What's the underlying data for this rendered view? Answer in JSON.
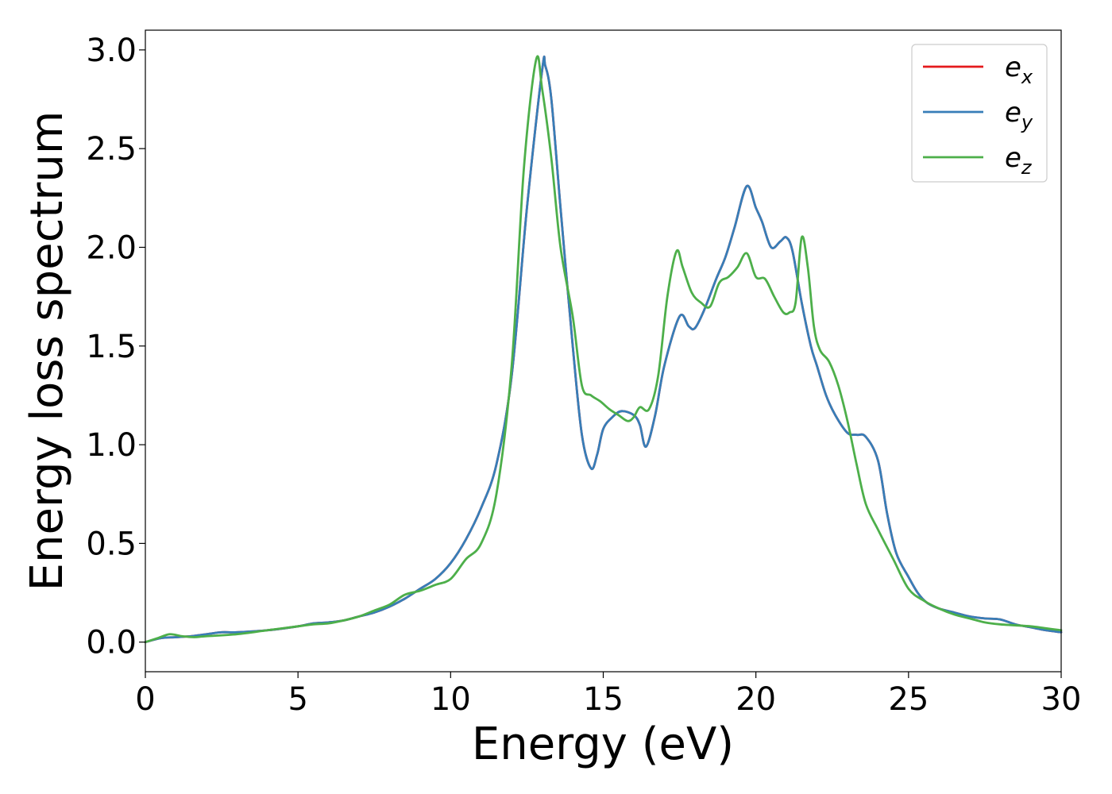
{
  "chart_data": {
    "type": "line",
    "title": "",
    "xlabel": "Energy (eV)",
    "ylabel": "Energy loss spectrum",
    "xlim": [
      0,
      30
    ],
    "ylim": [
      -0.15,
      3.1
    ],
    "xticks": [
      "0",
      "5",
      "10",
      "15",
      "20",
      "25",
      "30"
    ],
    "yticks": [
      "0.0",
      "0.5",
      "1.0",
      "1.5",
      "2.0",
      "2.5",
      "3.0"
    ],
    "grid": false,
    "legend_position": "top-right",
    "legend": [
      {
        "base": "e",
        "sub": "x",
        "color": "#e41a1c"
      },
      {
        "base": "e",
        "sub": "y",
        "color": "#377eb8"
      },
      {
        "base": "e",
        "sub": "z",
        "color": "#4daf4a"
      }
    ],
    "series": [
      {
        "name": "e_x",
        "color": "#e41a1c",
        "x": [
          0,
          0.5,
          1,
          1.5,
          2,
          2.5,
          3,
          4,
          5,
          5.5,
          6,
          6.5,
          7,
          7.5,
          8,
          8.5,
          9,
          9.5,
          10,
          10.5,
          11,
          11.5,
          12,
          12.5,
          13,
          13.1,
          13.3,
          13.6,
          14,
          14.3,
          14.6,
          14.8,
          15,
          15.3,
          15.6,
          16,
          16.2,
          16.4,
          16.7,
          17,
          17.5,
          17.8,
          18,
          18.3,
          18.7,
          19,
          19.3,
          19.7,
          20,
          20.2,
          20.5,
          20.8,
          21,
          21.2,
          21.5,
          21.8,
          22,
          22.3,
          22.6,
          23,
          23.3,
          23.6,
          24,
          24.3,
          24.6,
          25,
          25.3,
          25.6,
          26,
          26.5,
          27,
          27.5,
          28,
          28.5,
          29,
          29.5,
          30
        ],
        "y": [
          0.0,
          0.02,
          0.025,
          0.03,
          0.04,
          0.05,
          0.05,
          0.06,
          0.08,
          0.095,
          0.1,
          0.11,
          0.13,
          0.15,
          0.18,
          0.22,
          0.27,
          0.32,
          0.4,
          0.52,
          0.68,
          0.9,
          1.35,
          2.2,
          2.9,
          2.92,
          2.75,
          2.2,
          1.5,
          1.05,
          0.88,
          0.95,
          1.08,
          1.14,
          1.17,
          1.15,
          1.1,
          0.99,
          1.15,
          1.4,
          1.65,
          1.6,
          1.59,
          1.68,
          1.84,
          1.95,
          2.1,
          2.31,
          2.2,
          2.13,
          2.0,
          2.03,
          2.05,
          1.98,
          1.72,
          1.5,
          1.4,
          1.25,
          1.15,
          1.06,
          1.05,
          1.04,
          0.92,
          0.65,
          0.45,
          0.33,
          0.25,
          0.2,
          0.17,
          0.15,
          0.13,
          0.12,
          0.115,
          0.09,
          0.075,
          0.06,
          0.05
        ]
      },
      {
        "name": "e_y",
        "color": "#377eb8",
        "x": [
          0,
          0.5,
          1,
          1.5,
          2,
          2.5,
          3,
          4,
          5,
          5.5,
          6,
          6.5,
          7,
          7.5,
          8,
          8.5,
          9,
          9.5,
          10,
          10.5,
          11,
          11.5,
          12,
          12.5,
          13,
          13.1,
          13.3,
          13.6,
          14,
          14.3,
          14.6,
          14.8,
          15,
          15.3,
          15.6,
          16,
          16.2,
          16.4,
          16.7,
          17,
          17.5,
          17.8,
          18,
          18.3,
          18.7,
          19,
          19.3,
          19.7,
          20,
          20.2,
          20.5,
          20.8,
          21,
          21.2,
          21.5,
          21.8,
          22,
          22.3,
          22.6,
          23,
          23.3,
          23.6,
          24,
          24.3,
          24.6,
          25,
          25.3,
          25.6,
          26,
          26.5,
          27,
          27.5,
          28,
          28.5,
          29,
          29.5,
          30
        ],
        "y": [
          0.0,
          0.02,
          0.025,
          0.03,
          0.04,
          0.05,
          0.05,
          0.06,
          0.08,
          0.095,
          0.1,
          0.11,
          0.13,
          0.15,
          0.18,
          0.22,
          0.27,
          0.32,
          0.4,
          0.52,
          0.68,
          0.9,
          1.35,
          2.2,
          2.9,
          2.92,
          2.75,
          2.2,
          1.5,
          1.05,
          0.88,
          0.95,
          1.08,
          1.14,
          1.17,
          1.15,
          1.1,
          0.99,
          1.15,
          1.4,
          1.65,
          1.6,
          1.59,
          1.68,
          1.84,
          1.95,
          2.1,
          2.31,
          2.2,
          2.13,
          2.0,
          2.03,
          2.05,
          1.98,
          1.72,
          1.5,
          1.4,
          1.25,
          1.15,
          1.06,
          1.05,
          1.04,
          0.92,
          0.65,
          0.45,
          0.33,
          0.25,
          0.2,
          0.17,
          0.15,
          0.13,
          0.12,
          0.115,
          0.09,
          0.075,
          0.06,
          0.05
        ]
      },
      {
        "name": "e_z",
        "color": "#4daf4a",
        "x": [
          0,
          0.4,
          0.8,
          1.2,
          1.6,
          2,
          3,
          4,
          5,
          5.5,
          6,
          6.5,
          7,
          7.5,
          8,
          8.5,
          9,
          9.5,
          10,
          10.5,
          11,
          11.5,
          12,
          12.4,
          12.8,
          13.0,
          13.3,
          13.6,
          14,
          14.3,
          14.6,
          14.9,
          15.2,
          15.5,
          15.8,
          16.0,
          16.2,
          16.5,
          16.8,
          17.1,
          17.4,
          17.6,
          17.9,
          18.2,
          18.5,
          18.8,
          19.1,
          19.4,
          19.7,
          20.0,
          20.3,
          20.6,
          20.9,
          21.1,
          21.3,
          21.5,
          21.7,
          21.9,
          22.1,
          22.4,
          22.7,
          23.0,
          23.3,
          23.6,
          24,
          24.5,
          25,
          25.5,
          26,
          26.5,
          27,
          27.5,
          28,
          28.5,
          29,
          29.5,
          30
        ],
        "y": [
          0.0,
          0.02,
          0.04,
          0.03,
          0.025,
          0.03,
          0.04,
          0.06,
          0.08,
          0.09,
          0.095,
          0.11,
          0.13,
          0.16,
          0.19,
          0.24,
          0.26,
          0.29,
          0.32,
          0.42,
          0.5,
          0.75,
          1.4,
          2.4,
          2.95,
          2.8,
          2.45,
          2.0,
          1.65,
          1.3,
          1.25,
          1.22,
          1.18,
          1.15,
          1.12,
          1.14,
          1.19,
          1.18,
          1.35,
          1.75,
          1.98,
          1.9,
          1.77,
          1.72,
          1.7,
          1.82,
          1.85,
          1.9,
          1.97,
          1.85,
          1.84,
          1.75,
          1.67,
          1.67,
          1.72,
          2.05,
          1.9,
          1.6,
          1.48,
          1.42,
          1.3,
          1.12,
          0.9,
          0.7,
          0.57,
          0.42,
          0.27,
          0.21,
          0.17,
          0.14,
          0.12,
          0.1,
          0.09,
          0.085,
          0.08,
          0.07,
          0.06
        ]
      }
    ]
  }
}
